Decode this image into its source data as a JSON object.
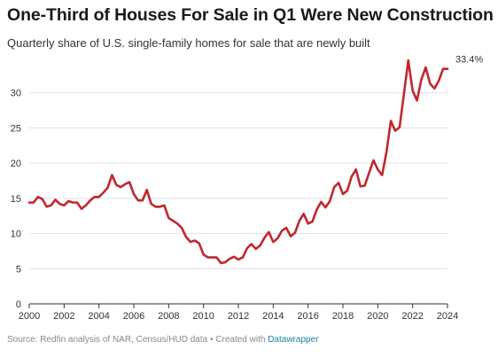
{
  "title": "One-Third of Houses For Sale in Q1 Were New Construction",
  "subtitle": "Quarterly share of U.S. single-family homes for sale that are newly built",
  "footer": {
    "source_text": "Source: Redfin analysis of NAR, Census/HUD data",
    "separator": " • ",
    "credit_text": "Created with ",
    "credit_link": "Datawrapper"
  },
  "colors": {
    "line": "#c0272d",
    "grid": "#e0e0e0",
    "axis": "#333333"
  },
  "chart_data": {
    "type": "line",
    "title": "One-Third of Houses For Sale in Q1 Were New Construction",
    "subtitle": "Quarterly share of U.S. single-family homes for sale that are newly built",
    "xlabel": "",
    "ylabel": "",
    "xlim": [
      2000,
      2024
    ],
    "ylim": [
      0,
      35
    ],
    "x_ticks": [
      2000,
      2002,
      2004,
      2006,
      2008,
      2010,
      2012,
      2014,
      2016,
      2018,
      2020,
      2022,
      2024
    ],
    "y_ticks": [
      0,
      5,
      10,
      15,
      20,
      25,
      30
    ],
    "grid": true,
    "end_label": "33.4%",
    "series": [
      {
        "x": [
          2000.0,
          2000.25,
          2000.5,
          2000.75,
          2001.0,
          2001.25,
          2001.5,
          2001.75,
          2002.0,
          2002.25,
          2002.5,
          2002.75,
          2003.0,
          2003.25,
          2003.5,
          2003.75,
          2004.0,
          2004.25,
          2004.5,
          2004.75,
          2005.0,
          2005.25,
          2005.5,
          2005.75,
          2006.0,
          2006.25,
          2006.5,
          2006.75,
          2007.0,
          2007.25,
          2007.5,
          2007.75,
          2008.0,
          2008.25,
          2008.5,
          2008.75,
          2009.0,
          2009.25,
          2009.5,
          2009.75,
          2010.0,
          2010.25,
          2010.5,
          2010.75,
          2011.0,
          2011.25,
          2011.5,
          2011.75,
          2012.0,
          2012.25,
          2012.5,
          2012.75,
          2013.0,
          2013.25,
          2013.5,
          2013.75,
          2014.0,
          2014.25,
          2014.5,
          2014.75,
          2015.0,
          2015.25,
          2015.5,
          2015.75,
          2016.0,
          2016.25,
          2016.5,
          2016.75,
          2017.0,
          2017.25,
          2017.5,
          2017.75,
          2018.0,
          2018.25,
          2018.5,
          2018.75,
          2019.0,
          2019.25,
          2019.5,
          2019.75,
          2020.0,
          2020.25,
          2020.5,
          2020.75,
          2021.0,
          2021.25,
          2021.5,
          2021.75,
          2022.0,
          2022.25,
          2022.5,
          2022.75,
          2023.0,
          2023.25,
          2023.5,
          2023.75,
          2024.0
        ],
        "values": [
          14.4,
          14.4,
          15.2,
          14.9,
          13.8,
          14.0,
          14.8,
          14.2,
          14.0,
          14.6,
          14.4,
          14.4,
          13.5,
          14.0,
          14.7,
          15.2,
          15.2,
          15.8,
          16.5,
          18.3,
          16.9,
          16.6,
          17.0,
          17.3,
          15.6,
          14.7,
          14.7,
          16.2,
          14.2,
          13.8,
          13.8,
          14.0,
          12.2,
          11.8,
          11.4,
          10.8,
          9.5,
          8.8,
          9.0,
          8.6,
          7.0,
          6.6,
          6.6,
          6.6,
          5.8,
          5.9,
          6.4,
          6.7,
          6.3,
          6.6,
          7.9,
          8.5,
          7.8,
          8.3,
          9.4,
          10.2,
          8.8,
          9.3,
          10.4,
          10.8,
          9.6,
          10.1,
          11.8,
          12.8,
          11.4,
          11.7,
          13.4,
          14.5,
          13.7,
          14.6,
          16.6,
          17.2,
          15.6,
          16.1,
          18.1,
          19.1,
          16.7,
          16.8,
          18.6,
          20.4,
          19.1,
          18.3,
          21.6,
          26.0,
          24.6,
          25.1,
          29.8,
          34.6,
          30.3,
          28.9,
          31.9,
          33.6,
          31.3,
          30.6,
          31.7,
          33.4,
          33.4
        ]
      }
    ]
  }
}
